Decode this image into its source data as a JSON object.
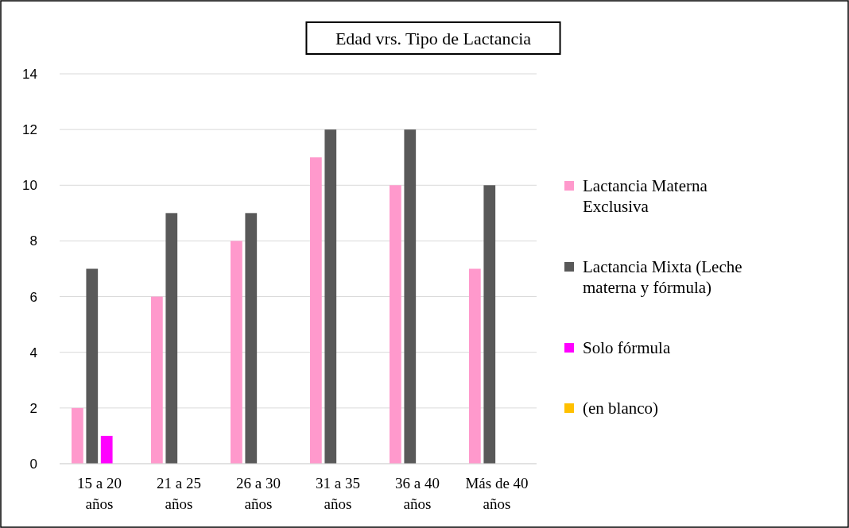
{
  "chart_data": {
    "type": "bar",
    "title": "Edad vrs. Tipo de Lactancia",
    "categories": [
      "15 a 20 años",
      "21 a 25 años",
      "26 a 30 años",
      "31 a 35 años",
      "36 a 40 años",
      "Más de 40 años"
    ],
    "series": [
      {
        "name": "Lactancia Materna Exclusiva",
        "color": "#ff99cc",
        "values": [
          2,
          6,
          8,
          11,
          10,
          7
        ]
      },
      {
        "name": "Lactancia Mixta (Leche materna y fórmula)",
        "color": "#595959",
        "values": [
          7,
          9,
          9,
          12,
          12,
          10
        ]
      },
      {
        "name": "Solo fórmula",
        "color": "#ff00ff",
        "values": [
          1,
          null,
          null,
          null,
          null,
          null
        ]
      },
      {
        "name": "(en blanco)",
        "color": "#ffc000",
        "values": [
          null,
          null,
          null,
          null,
          null,
          null
        ]
      }
    ],
    "ylim": [
      0,
      14
    ],
    "yticks": [
      0,
      2,
      4,
      6,
      8,
      10,
      12,
      14
    ],
    "grid": "y",
    "legend": "right"
  }
}
